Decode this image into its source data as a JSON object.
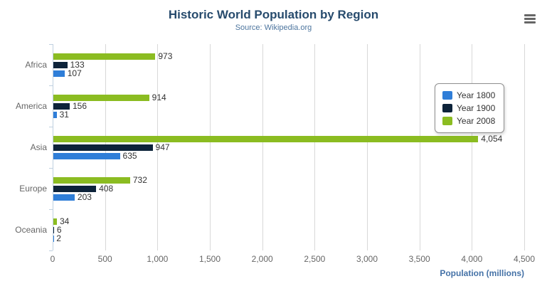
{
  "chart_data": {
    "type": "bar",
    "title": "Historic World Population by Region",
    "subtitle": "Source: Wikipedia.org",
    "categories": [
      "Africa",
      "America",
      "Asia",
      "Europe",
      "Oceania"
    ],
    "series": [
      {
        "name": "Year 1800",
        "color": "#2f7ed8",
        "values": [
          107,
          31,
          635,
          203,
          2
        ]
      },
      {
        "name": "Year 1900",
        "color": "#0d233a",
        "values": [
          133,
          156,
          947,
          408,
          6
        ]
      },
      {
        "name": "Year 2008",
        "color": "#8bbc21",
        "values": [
          973,
          914,
          4054,
          732,
          34
        ]
      }
    ],
    "series_display_order_top_to_bottom": [
      "Year 2008",
      "Year 1900",
      "Year 1800"
    ],
    "xlabel": "Population (millions)",
    "ylabel": "",
    "xlim": [
      0,
      4500
    ],
    "tick_interval": 500,
    "grid": true,
    "legend_position": "right",
    "data_labels": true
  },
  "colors": {
    "title": "#274b6d",
    "subtitle": "#4d759e",
    "axis_title": "#4572a7",
    "axis_line": "#c0d0e0",
    "gridline": "#d8d8d8",
    "tick_label": "#666666",
    "data_label": "#333333",
    "legend_border": "#909090"
  },
  "icons": {
    "export_menu": "hamburger-icon"
  }
}
